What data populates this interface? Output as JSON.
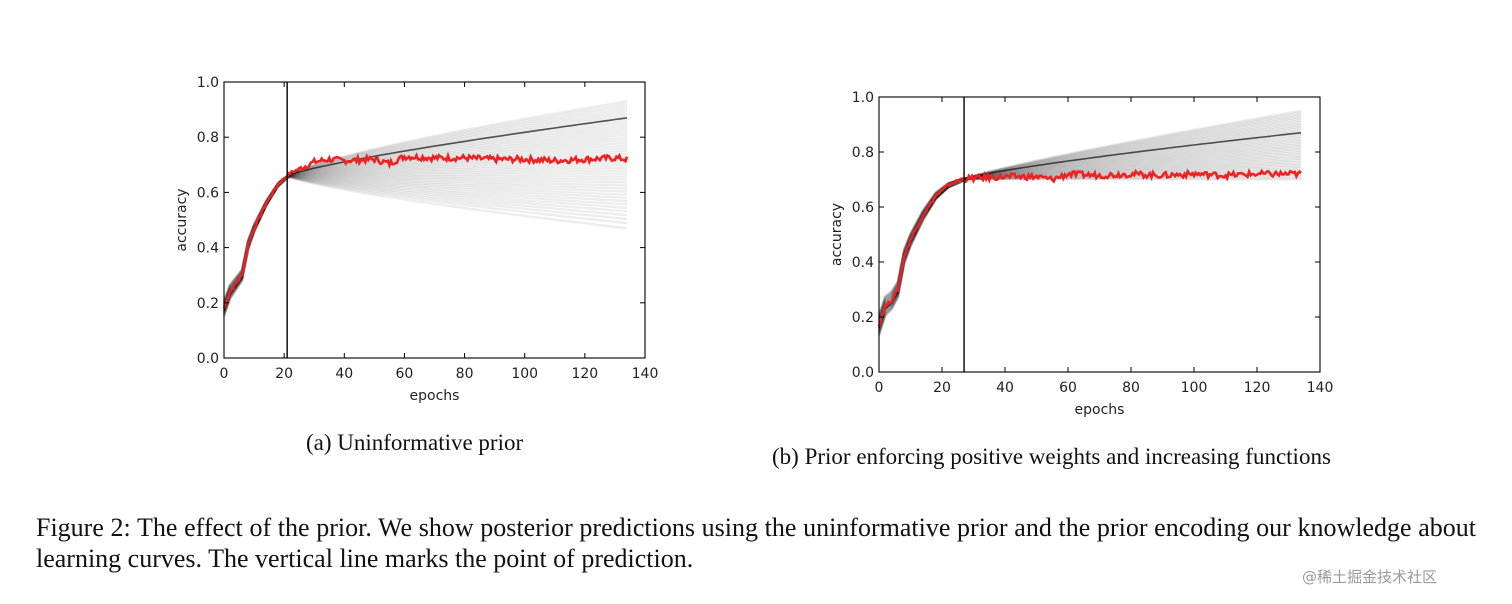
{
  "figure": {
    "subcaption_a": "(a) Uninformative prior",
    "subcaption_b": "(b) Prior enforcing positive weights and increasing functions",
    "caption": "Figure 2: The effect of the prior. We show posterior predictions using the uninformative prior and the prior encoding our knowledge about learning curves. The vertical line marks the point of prediction."
  },
  "watermark": "@稀土掘金技术社区",
  "chart_data": [
    {
      "type": "line",
      "xlabel": "epochs",
      "ylabel": "accuracy",
      "xlim": [
        0,
        140
      ],
      "ylim": [
        0.0,
        1.0
      ],
      "x_ticks": [
        0,
        20,
        40,
        60,
        80,
        100,
        120,
        140
      ],
      "y_ticks": [
        0.0,
        0.2,
        0.4,
        0.6,
        0.8,
        1.0
      ],
      "prediction_epoch": 21,
      "last_epoch": 134,
      "observed_curve": {
        "color": "#ee2222",
        "x": [
          0,
          2,
          4,
          6,
          8,
          10,
          14,
          18,
          22,
          26,
          30,
          35,
          40,
          50,
          55,
          60,
          70,
          80,
          90,
          100,
          110,
          120,
          130,
          134
        ],
        "y": [
          0.18,
          0.24,
          0.27,
          0.3,
          0.41,
          0.47,
          0.56,
          0.63,
          0.67,
          0.69,
          0.71,
          0.72,
          0.715,
          0.72,
          0.705,
          0.73,
          0.725,
          0.725,
          0.72,
          0.72,
          0.715,
          0.72,
          0.725,
          0.72
        ]
      },
      "posterior_band": {
        "color": "#000000",
        "upper_at_end": 0.93,
        "lower_at_end": 0.47,
        "mean_at_end": 0.87
      }
    },
    {
      "type": "line",
      "xlabel": "epochs",
      "ylabel": "accuracy",
      "xlim": [
        0,
        140
      ],
      "ylim": [
        0.0,
        1.0
      ],
      "x_ticks": [
        0,
        20,
        40,
        60,
        80,
        100,
        120,
        140
      ],
      "y_ticks": [
        0.0,
        0.2,
        0.4,
        0.6,
        0.8,
        1.0
      ],
      "prediction_epoch": 27,
      "last_epoch": 134,
      "observed_curve": {
        "color": "#ee2222",
        "x": [
          0,
          2,
          4,
          6,
          8,
          10,
          14,
          18,
          22,
          26,
          30,
          40,
          50,
          55,
          60,
          70,
          80,
          90,
          100,
          110,
          120,
          130,
          134
        ],
        "y": [
          0.17,
          0.24,
          0.26,
          0.3,
          0.42,
          0.48,
          0.57,
          0.64,
          0.68,
          0.7,
          0.705,
          0.71,
          0.71,
          0.7,
          0.72,
          0.715,
          0.72,
          0.715,
          0.72,
          0.715,
          0.72,
          0.72,
          0.72
        ]
      },
      "posterior_band": {
        "color": "#000000",
        "upper_at_end": 0.95,
        "lower_at_end": 0.7,
        "mean_at_end": 0.87
      }
    }
  ]
}
